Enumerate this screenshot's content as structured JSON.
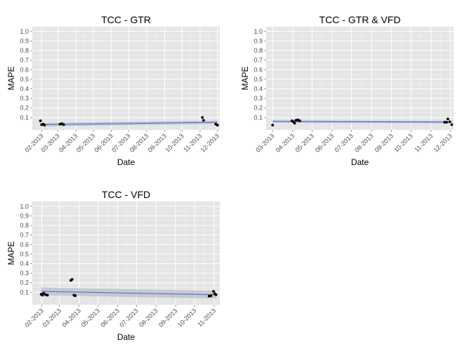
{
  "chart_data": [
    {
      "type": "scatter",
      "title": "TCC -   GTR",
      "xlabel": "Date",
      "ylabel": "MAPE",
      "y_ticks": [
        "0.1",
        "0.2",
        "0.3",
        "0.4",
        "0.5",
        "0.6",
        "0.7",
        "0.8",
        "0.9",
        "1.0"
      ],
      "x_ticks": [
        "02-2013",
        "03-2013",
        "04-2013",
        "05-2013",
        "06-2013",
        "07-2013",
        "08-2013",
        "09-2013",
        "10-2013",
        "11-2013",
        "12-2013"
      ],
      "xlim": [
        "2013-01-16",
        "2013-12-05"
      ],
      "ylim": [
        -0.03,
        1.05
      ],
      "points": [
        {
          "x": "2013-01-30",
          "y": 0.065
        },
        {
          "x": "2013-02-01",
          "y": 0.025
        },
        {
          "x": "2013-02-04",
          "y": 0.03
        },
        {
          "x": "2013-02-06",
          "y": 0.02
        },
        {
          "x": "2013-03-05",
          "y": 0.03
        },
        {
          "x": "2013-03-08",
          "y": 0.035
        },
        {
          "x": "2013-03-11",
          "y": 0.025
        },
        {
          "x": "2013-11-05",
          "y": 0.1
        },
        {
          "x": "2013-11-07",
          "y": 0.07
        },
        {
          "x": "2013-11-28",
          "y": 0.03
        },
        {
          "x": "2013-12-01",
          "y": 0.02
        }
      ],
      "trend": {
        "x_start": "2013-01-30",
        "y_start": 0.025,
        "x_end": "2013-12-01",
        "y_end": 0.05,
        "band": 0.018
      },
      "colors": {
        "panel": "#e5e5e5",
        "grid": "#f2f2f2",
        "point": "#000000",
        "trend": "#3366ff",
        "band": "#bdbdbd"
      }
    },
    {
      "type": "scatter",
      "title": "TCC -   GTR & VFD",
      "xlabel": "Date",
      "ylabel": "MAPE",
      "y_ticks": [
        "0.1",
        "0.2",
        "0.3",
        "0.4",
        "0.5",
        "0.6",
        "0.7",
        "0.8",
        "0.9",
        "1.0"
      ],
      "x_ticks": [
        "03-2013",
        "04-2013",
        "05-2013",
        "06-2013",
        "07-2013",
        "08-2013",
        "09-2013",
        "10-2013",
        "11-2013",
        "12-2013"
      ],
      "xlim": [
        "2013-02-19",
        "2013-12-06"
      ],
      "ylim": [
        -0.03,
        1.05
      ],
      "points": [
        {
          "x": "2013-03-01",
          "y": 0.02
        },
        {
          "x": "2013-03-31",
          "y": 0.065
        },
        {
          "x": "2013-04-02",
          "y": 0.055
        },
        {
          "x": "2013-04-04",
          "y": 0.04
        },
        {
          "x": "2013-04-06",
          "y": 0.07
        },
        {
          "x": "2013-04-09",
          "y": 0.075
        },
        {
          "x": "2013-04-12",
          "y": 0.065
        },
        {
          "x": "2013-11-22",
          "y": 0.05
        },
        {
          "x": "2013-11-25",
          "y": 0.05
        },
        {
          "x": "2013-11-27",
          "y": 0.085
        },
        {
          "x": "2013-11-30",
          "y": 0.055
        },
        {
          "x": "2013-12-03",
          "y": 0.025
        }
      ],
      "trend": {
        "x_start": "2013-03-01",
        "y_start": 0.058,
        "x_end": "2013-12-03",
        "y_end": 0.052,
        "band": 0.014
      },
      "colors": {
        "panel": "#e5e5e5",
        "grid": "#f2f2f2",
        "point": "#000000",
        "trend": "#3366ff",
        "band": "#bdbdbd"
      }
    },
    {
      "type": "scatter",
      "title": "TCC -   VFD",
      "xlabel": "Date",
      "ylabel": "MAPE",
      "y_ticks": [
        "0.1",
        "0.2",
        "0.3",
        "0.4",
        "0.5",
        "0.6",
        "0.7",
        "0.8",
        "0.9",
        "1.0"
      ],
      "x_ticks": [
        "02-2013",
        "03-2013",
        "04-2013",
        "05-2013",
        "06-2013",
        "07-2013",
        "08-2013",
        "09-2013",
        "10-2013",
        "11-2013"
      ],
      "xlim": [
        "2013-01-17",
        "2013-11-10"
      ],
      "ylim": [
        -0.03,
        1.05
      ],
      "points": [
        {
          "x": "2013-01-31",
          "y": 0.08
        },
        {
          "x": "2013-02-02",
          "y": 0.07
        },
        {
          "x": "2013-02-04",
          "y": 0.09
        },
        {
          "x": "2013-02-07",
          "y": 0.075
        },
        {
          "x": "2013-02-10",
          "y": 0.07
        },
        {
          "x": "2013-03-19",
          "y": 0.225
        },
        {
          "x": "2013-03-21",
          "y": 0.235
        },
        {
          "x": "2013-03-24",
          "y": 0.07
        },
        {
          "x": "2013-03-26",
          "y": 0.065
        },
        {
          "x": "2013-10-24",
          "y": 0.06
        },
        {
          "x": "2013-10-27",
          "y": 0.065
        },
        {
          "x": "2013-10-31",
          "y": 0.11
        },
        {
          "x": "2013-11-02",
          "y": 0.085
        },
        {
          "x": "2013-11-04",
          "y": 0.075
        }
      ],
      "trend": {
        "x_start": "2013-01-31",
        "y_start": 0.11,
        "x_end": "2013-11-04",
        "y_end": 0.075,
        "band": 0.04
      },
      "colors": {
        "panel": "#e5e5e5",
        "grid": "#f2f2f2",
        "point": "#000000",
        "trend": "#3366ff",
        "band": "#bdbdbd"
      }
    }
  ]
}
